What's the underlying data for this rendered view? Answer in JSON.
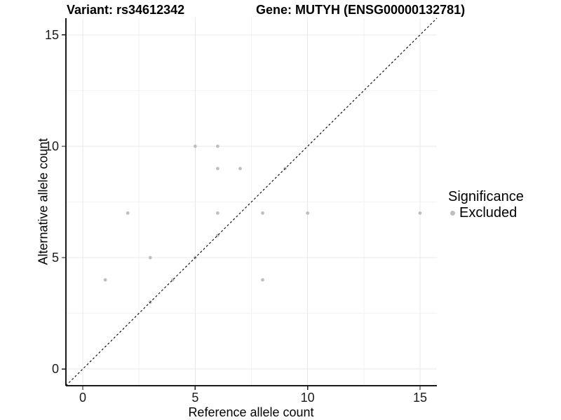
{
  "titles": {
    "variant": "Variant: rs34612342",
    "gene": "Gene: MUTYH (ENSG00000132781)"
  },
  "axes": {
    "x": {
      "label": "Reference allele count",
      "ticks": [
        0,
        5,
        10,
        15
      ],
      "tick_labels": [
        "0",
        "5",
        "10",
        "15"
      ],
      "minor_ticks": [
        2.5,
        7.5,
        12.5
      ]
    },
    "y": {
      "label": "Alternative allele count",
      "ticks": [
        0,
        5,
        10,
        15
      ],
      "tick_labels": [
        "0",
        "5",
        "10",
        "15"
      ],
      "minor_ticks": [
        2.5,
        7.5,
        12.5
      ]
    }
  },
  "legend": {
    "title": "Significance",
    "items": [
      {
        "label": "Excluded",
        "color": "#bfbfbf"
      }
    ]
  },
  "colors": {
    "point": "#bfbfbf",
    "axis_line": "#1a1a1a",
    "tick_label": "#1a1a1a",
    "major_grid": "#e8e8e8",
    "minor_grid": "#f2f2f2",
    "identity_line": "#000000",
    "background": "#ffffff"
  },
  "chart_data": {
    "type": "scatter",
    "title": "Variant: rs34612342 | Gene: MUTYH (ENSG00000132781)",
    "xlabel": "Reference allele count",
    "ylabel": "Alternative allele count",
    "xlim": [
      -0.75,
      15.75
    ],
    "ylim": [
      -0.75,
      15.75
    ],
    "x_ticks": [
      0,
      5,
      10,
      15
    ],
    "y_ticks": [
      0,
      5,
      10,
      15
    ],
    "grid": {
      "major": [
        0,
        5,
        10,
        15
      ],
      "minor": [
        2.5,
        7.5,
        12.5
      ],
      "major_color": "#e8e8e8",
      "minor_color": "#f2f2f2"
    },
    "reference_line": {
      "type": "identity",
      "slope": 1,
      "intercept": 0,
      "style": "dashed",
      "color": "#000000"
    },
    "legend_position": "right",
    "series": [
      {
        "name": "Excluded",
        "color": "#bfbfbf",
        "points": [
          [
            1,
            4
          ],
          [
            2,
            7
          ],
          [
            3,
            3
          ],
          [
            3,
            5
          ],
          [
            4,
            4
          ],
          [
            5,
            5
          ],
          [
            5,
            10
          ],
          [
            6,
            6
          ],
          [
            6,
            7
          ],
          [
            6,
            9
          ],
          [
            6,
            10
          ],
          [
            7,
            9
          ],
          [
            8,
            4
          ],
          [
            8,
            7
          ],
          [
            9,
            9
          ],
          [
            10,
            7
          ],
          [
            15,
            7
          ]
        ]
      }
    ]
  }
}
